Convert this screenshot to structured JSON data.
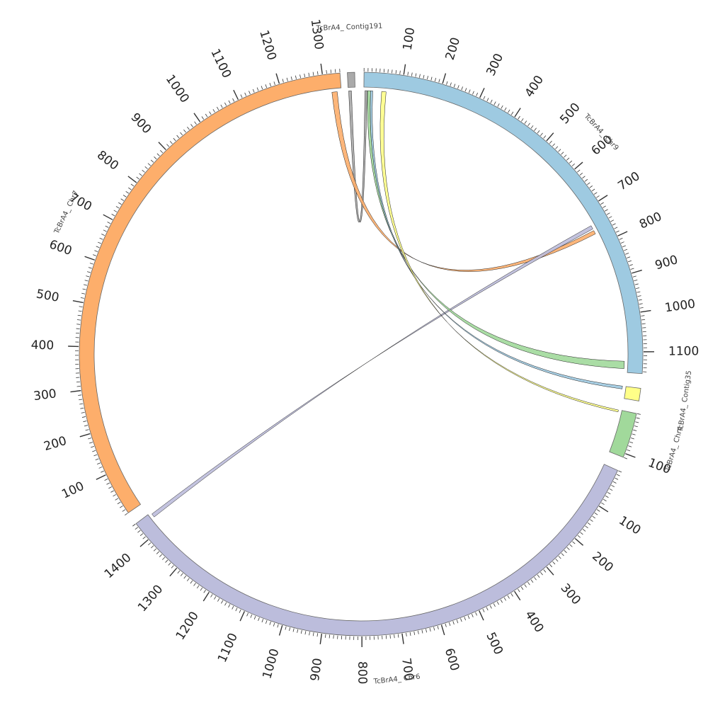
{
  "chromosomes": [
    {
      "id": "chr9",
      "label": "TcBrA4_ Chr9",
      "length": 1155,
      "color": "#9ecae1",
      "start_deg": 0.6,
      "end_deg": 94.0,
      "tick_labels": [
        "100",
        "200",
        "300",
        "400",
        "500",
        "600",
        "700",
        "800",
        "900",
        "1000",
        "1100"
      ]
    },
    {
      "id": "contig35",
      "label": "TcBrA4_ Contig35",
      "length": 25,
      "color": "#ffff88",
      "start_deg": 97.0,
      "end_deg": 99.6,
      "tick_labels": []
    },
    {
      "id": "chr4",
      "label": "TcBrA4_ Chr4",
      "length": 110,
      "color": "#a1d99b",
      "start_deg": 102.2,
      "end_deg": 111.5,
      "tick_labels": [
        "100"
      ]
    },
    {
      "id": "chr6",
      "label": "TcBrA4_ Chr6",
      "length": 1450,
      "color": "#bcbddc",
      "start_deg": 114.4,
      "end_deg": 233.0,
      "tick_labels": [
        "100",
        "200",
        "300",
        "400",
        "500",
        "600",
        "700",
        "800",
        "900",
        "1000",
        "1100",
        "1200",
        "1300",
        "1400"
      ]
    },
    {
      "id": "chr7",
      "label": "TcBrA4_ Chr7",
      "length": 1340,
      "color": "#fdae6b",
      "start_deg": 235.7,
      "end_deg": 355.7,
      "tick_labels": [
        "100",
        "200",
        "300",
        "400",
        "500",
        "600",
        "700",
        "800",
        "900",
        "1000",
        "1100",
        "1200",
        "1300"
      ]
    },
    {
      "id": "contig191",
      "label": "TcBrA4_ Contig191",
      "length": 15,
      "color": "#aaaaaa",
      "start_deg": 357.2,
      "end_deg": 358.7,
      "tick_labels": []
    }
  ],
  "links": [
    {
      "color": "#aaaaaa",
      "from": {
        "chr": "contig191",
        "start": 1,
        "end": 7
      },
      "to": {
        "chr": "chr9",
        "start": 3,
        "end": 9
      }
    },
    {
      "color": "#fdae6b",
      "from": {
        "chr": "chr7",
        "start": 1317,
        "end": 1330
      },
      "to": {
        "chr": "chr9",
        "start": 760,
        "end": 770
      }
    },
    {
      "color": "#bcbddc",
      "from": {
        "chr": "chr6",
        "start": 1435,
        "end": 1445
      },
      "to": {
        "chr": "chr9",
        "start": 745,
        "end": 755
      }
    },
    {
      "color": "#a1d99b",
      "from": {
        "chr": "chr9",
        "start": 10,
        "end": 18
      },
      "to": {
        "chr": "chr9",
        "start": 1125,
        "end": 1145
      }
    },
    {
      "color": "#9ecae1",
      "from": {
        "chr": "chr9",
        "start": 18,
        "end": 24
      },
      "to": {
        "chr": "contig35",
        "start": 0,
        "end": 6
      }
    },
    {
      "color": "#ffff88",
      "from": {
        "chr": "chr9",
        "start": 48,
        "end": 60
      },
      "to": {
        "chr": "chr4",
        "start": 1,
        "end": 6
      }
    }
  ]
}
